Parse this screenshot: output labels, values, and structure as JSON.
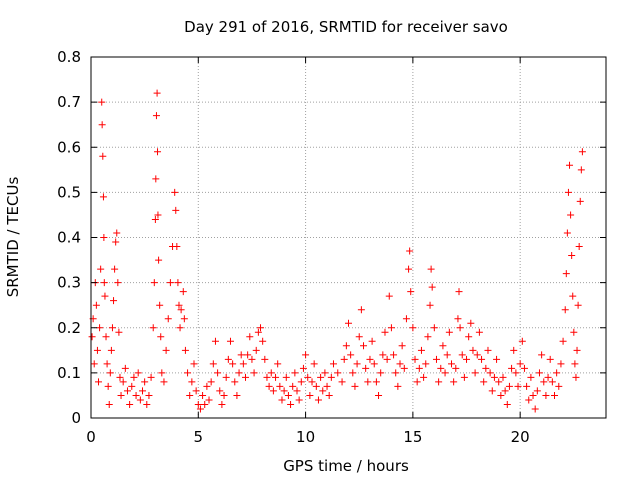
{
  "chart_data": {
    "type": "scatter",
    "title": "Day 291 of 2016, SRMTID for receiver savo",
    "xlabel": "GPS time / hours",
    "ylabel": "SRMTID / TECUs",
    "xlim": [
      0,
      24
    ],
    "ylim": [
      0,
      0.8
    ],
    "x_ticks": [
      0,
      5,
      10,
      15,
      20
    ],
    "x_tick_labels": [
      "0",
      "5",
      "10",
      "15",
      "20"
    ],
    "y_ticks": [
      0,
      0.1,
      0.2,
      0.3,
      0.4,
      0.5,
      0.6,
      0.7,
      0.8
    ],
    "y_tick_labels": [
      "0",
      "0.1",
      "0.2",
      "0.3",
      "0.4",
      "0.5",
      "0.6",
      "0.7",
      "0.8"
    ],
    "grid": true,
    "marker": "plus",
    "color": "#ff0000",
    "series": [
      {
        "name": "SRMTID",
        "points": [
          [
            0.05,
            0.18
          ],
          [
            0.1,
            0.22
          ],
          [
            0.15,
            0.12
          ],
          [
            0.2,
            0.3
          ],
          [
            0.25,
            0.25
          ],
          [
            0.3,
            0.15
          ],
          [
            0.35,
            0.08
          ],
          [
            0.4,
            0.2
          ],
          [
            0.45,
            0.33
          ],
          [
            0.5,
            0.7
          ],
          [
            0.52,
            0.65
          ],
          [
            0.55,
            0.58
          ],
          [
            0.58,
            0.49
          ],
          [
            0.6,
            0.4
          ],
          [
            0.62,
            0.3
          ],
          [
            0.65,
            0.27
          ],
          [
            0.7,
            0.18
          ],
          [
            0.75,
            0.12
          ],
          [
            0.8,
            0.07
          ],
          [
            0.85,
            0.03
          ],
          [
            0.9,
            0.1
          ],
          [
            0.95,
            0.15
          ],
          [
            1.0,
            0.2
          ],
          [
            1.05,
            0.26
          ],
          [
            1.1,
            0.33
          ],
          [
            1.15,
            0.39
          ],
          [
            1.2,
            0.41
          ],
          [
            1.25,
            0.3
          ],
          [
            1.3,
            0.19
          ],
          [
            1.35,
            0.09
          ],
          [
            1.4,
            0.05
          ],
          [
            1.5,
            0.08
          ],
          [
            1.6,
            0.11
          ],
          [
            1.7,
            0.06
          ],
          [
            1.8,
            0.03
          ],
          [
            1.9,
            0.07
          ],
          [
            2.0,
            0.09
          ],
          [
            2.1,
            0.05
          ],
          [
            2.2,
            0.1
          ],
          [
            2.3,
            0.04
          ],
          [
            2.4,
            0.06
          ],
          [
            2.5,
            0.08
          ],
          [
            2.6,
            0.03
          ],
          [
            2.7,
            0.05
          ],
          [
            2.8,
            0.09
          ],
          [
            2.9,
            0.2
          ],
          [
            2.95,
            0.3
          ],
          [
            3.0,
            0.44
          ],
          [
            3.02,
            0.53
          ],
          [
            3.05,
            0.67
          ],
          [
            3.08,
            0.72
          ],
          [
            3.1,
            0.59
          ],
          [
            3.12,
            0.45
          ],
          [
            3.15,
            0.35
          ],
          [
            3.2,
            0.25
          ],
          [
            3.25,
            0.18
          ],
          [
            3.3,
            0.1
          ],
          [
            3.4,
            0.08
          ],
          [
            3.5,
            0.15
          ],
          [
            3.6,
            0.22
          ],
          [
            3.7,
            0.3
          ],
          [
            3.8,
            0.38
          ],
          [
            3.9,
            0.5
          ],
          [
            3.95,
            0.46
          ],
          [
            4.0,
            0.38
          ],
          [
            4.05,
            0.3
          ],
          [
            4.1,
            0.25
          ],
          [
            4.15,
            0.2
          ],
          [
            4.2,
            0.24
          ],
          [
            4.3,
            0.28
          ],
          [
            4.35,
            0.22
          ],
          [
            4.4,
            0.15
          ],
          [
            4.5,
            0.1
          ],
          [
            4.6,
            0.05
          ],
          [
            4.7,
            0.08
          ],
          [
            4.8,
            0.12
          ],
          [
            4.9,
            0.06
          ],
          [
            5.0,
            0.03
          ],
          [
            5.1,
            0.02
          ],
          [
            5.2,
            0.05
          ],
          [
            5.3,
            0.03
          ],
          [
            5.4,
            0.07
          ],
          [
            5.5,
            0.04
          ],
          [
            5.6,
            0.08
          ],
          [
            5.7,
            0.12
          ],
          [
            5.8,
            0.17
          ],
          [
            5.9,
            0.1
          ],
          [
            6.0,
            0.06
          ],
          [
            6.1,
            0.03
          ],
          [
            6.2,
            0.05
          ],
          [
            6.3,
            0.09
          ],
          [
            6.4,
            0.13
          ],
          [
            6.5,
            0.17
          ],
          [
            6.6,
            0.12
          ],
          [
            6.7,
            0.08
          ],
          [
            6.8,
            0.05
          ],
          [
            6.9,
            0.1
          ],
          [
            7.0,
            0.14
          ],
          [
            7.1,
            0.12
          ],
          [
            7.2,
            0.09
          ],
          [
            7.3,
            0.14
          ],
          [
            7.4,
            0.18
          ],
          [
            7.5,
            0.13
          ],
          [
            7.6,
            0.1
          ],
          [
            7.7,
            0.15
          ],
          [
            7.8,
            0.19
          ],
          [
            7.9,
            0.2
          ],
          [
            8.0,
            0.17
          ],
          [
            8.1,
            0.13
          ],
          [
            8.2,
            0.09
          ],
          [
            8.3,
            0.07
          ],
          [
            8.4,
            0.1
          ],
          [
            8.5,
            0.06
          ],
          [
            8.6,
            0.09
          ],
          [
            8.7,
            0.12
          ],
          [
            8.8,
            0.07
          ],
          [
            8.9,
            0.04
          ],
          [
            9.0,
            0.06
          ],
          [
            9.1,
            0.09
          ],
          [
            9.2,
            0.05
          ],
          [
            9.3,
            0.03
          ],
          [
            9.4,
            0.07
          ],
          [
            9.5,
            0.1
          ],
          [
            9.6,
            0.06
          ],
          [
            9.7,
            0.04
          ],
          [
            9.8,
            0.08
          ],
          [
            9.9,
            0.11
          ],
          [
            10.0,
            0.14
          ],
          [
            10.1,
            0.09
          ],
          [
            10.2,
            0.05
          ],
          [
            10.3,
            0.08
          ],
          [
            10.4,
            0.12
          ],
          [
            10.5,
            0.07
          ],
          [
            10.6,
            0.04
          ],
          [
            10.7,
            0.09
          ],
          [
            10.8,
            0.06
          ],
          [
            10.9,
            0.1
          ],
          [
            11.0,
            0.07
          ],
          [
            11.1,
            0.05
          ],
          [
            11.2,
            0.09
          ],
          [
            11.3,
            0.12
          ],
          [
            11.5,
            0.1
          ],
          [
            11.7,
            0.08
          ],
          [
            11.8,
            0.13
          ],
          [
            11.9,
            0.16
          ],
          [
            12.0,
            0.21
          ],
          [
            12.1,
            0.14
          ],
          [
            12.2,
            0.1
          ],
          [
            12.3,
            0.07
          ],
          [
            12.4,
            0.12
          ],
          [
            12.5,
            0.18
          ],
          [
            12.6,
            0.24
          ],
          [
            12.7,
            0.16
          ],
          [
            12.8,
            0.11
          ],
          [
            12.9,
            0.08
          ],
          [
            13.0,
            0.13
          ],
          [
            13.1,
            0.17
          ],
          [
            13.2,
            0.12
          ],
          [
            13.3,
            0.08
          ],
          [
            13.4,
            0.05
          ],
          [
            13.5,
            0.1
          ],
          [
            13.6,
            0.14
          ],
          [
            13.7,
            0.19
          ],
          [
            13.8,
            0.13
          ],
          [
            13.9,
            0.27
          ],
          [
            14.0,
            0.2
          ],
          [
            14.1,
            0.14
          ],
          [
            14.2,
            0.1
          ],
          [
            14.3,
            0.07
          ],
          [
            14.4,
            0.12
          ],
          [
            14.5,
            0.16
          ],
          [
            14.6,
            0.11
          ],
          [
            14.7,
            0.22
          ],
          [
            14.8,
            0.33
          ],
          [
            14.85,
            0.37
          ],
          [
            14.9,
            0.28
          ],
          [
            15.0,
            0.2
          ],
          [
            15.1,
            0.13
          ],
          [
            15.2,
            0.08
          ],
          [
            15.3,
            0.11
          ],
          [
            15.4,
            0.15
          ],
          [
            15.5,
            0.09
          ],
          [
            15.6,
            0.12
          ],
          [
            15.7,
            0.18
          ],
          [
            15.8,
            0.25
          ],
          [
            15.85,
            0.33
          ],
          [
            15.9,
            0.29
          ],
          [
            16.0,
            0.2
          ],
          [
            16.1,
            0.13
          ],
          [
            16.2,
            0.08
          ],
          [
            16.3,
            0.11
          ],
          [
            16.4,
            0.16
          ],
          [
            16.5,
            0.1
          ],
          [
            16.6,
            0.14
          ],
          [
            16.7,
            0.19
          ],
          [
            16.8,
            0.12
          ],
          [
            16.9,
            0.08
          ],
          [
            17.0,
            0.11
          ],
          [
            17.1,
            0.22
          ],
          [
            17.15,
            0.28
          ],
          [
            17.2,
            0.2
          ],
          [
            17.3,
            0.14
          ],
          [
            17.4,
            0.09
          ],
          [
            17.5,
            0.13
          ],
          [
            17.6,
            0.18
          ],
          [
            17.7,
            0.21
          ],
          [
            17.8,
            0.15
          ],
          [
            17.9,
            0.1
          ],
          [
            18.0,
            0.14
          ],
          [
            18.1,
            0.19
          ],
          [
            18.2,
            0.13
          ],
          [
            18.3,
            0.08
          ],
          [
            18.4,
            0.11
          ],
          [
            18.5,
            0.15
          ],
          [
            18.6,
            0.1
          ],
          [
            18.7,
            0.06
          ],
          [
            18.8,
            0.09
          ],
          [
            18.9,
            0.13
          ],
          [
            19.0,
            0.08
          ],
          [
            19.1,
            0.05
          ],
          [
            19.2,
            0.09
          ],
          [
            19.3,
            0.06
          ],
          [
            19.4,
            0.03
          ],
          [
            19.5,
            0.07
          ],
          [
            19.6,
            0.11
          ],
          [
            19.7,
            0.15
          ],
          [
            19.8,
            0.1
          ],
          [
            19.9,
            0.07
          ],
          [
            20.0,
            0.12
          ],
          [
            20.1,
            0.17
          ],
          [
            20.2,
            0.11
          ],
          [
            20.3,
            0.07
          ],
          [
            20.4,
            0.04
          ],
          [
            20.5,
            0.09
          ],
          [
            20.6,
            0.05
          ],
          [
            20.7,
            0.02
          ],
          [
            20.8,
            0.06
          ],
          [
            20.9,
            0.1
          ],
          [
            21.0,
            0.14
          ],
          [
            21.1,
            0.08
          ],
          [
            21.2,
            0.05
          ],
          [
            21.3,
            0.09
          ],
          [
            21.4,
            0.13
          ],
          [
            21.5,
            0.08
          ],
          [
            21.6,
            0.05
          ],
          [
            21.7,
            0.1
          ],
          [
            21.8,
            0.07
          ],
          [
            21.9,
            0.12
          ],
          [
            22.0,
            0.17
          ],
          [
            22.1,
            0.24
          ],
          [
            22.15,
            0.32
          ],
          [
            22.2,
            0.41
          ],
          [
            22.25,
            0.5
          ],
          [
            22.3,
            0.56
          ],
          [
            22.35,
            0.45
          ],
          [
            22.4,
            0.36
          ],
          [
            22.45,
            0.27
          ],
          [
            22.5,
            0.19
          ],
          [
            22.55,
            0.12
          ],
          [
            22.6,
            0.09
          ],
          [
            22.65,
            0.15
          ],
          [
            22.7,
            0.25
          ],
          [
            22.75,
            0.38
          ],
          [
            22.8,
            0.48
          ],
          [
            22.85,
            0.55
          ],
          [
            22.9,
            0.59
          ]
        ]
      }
    ]
  }
}
